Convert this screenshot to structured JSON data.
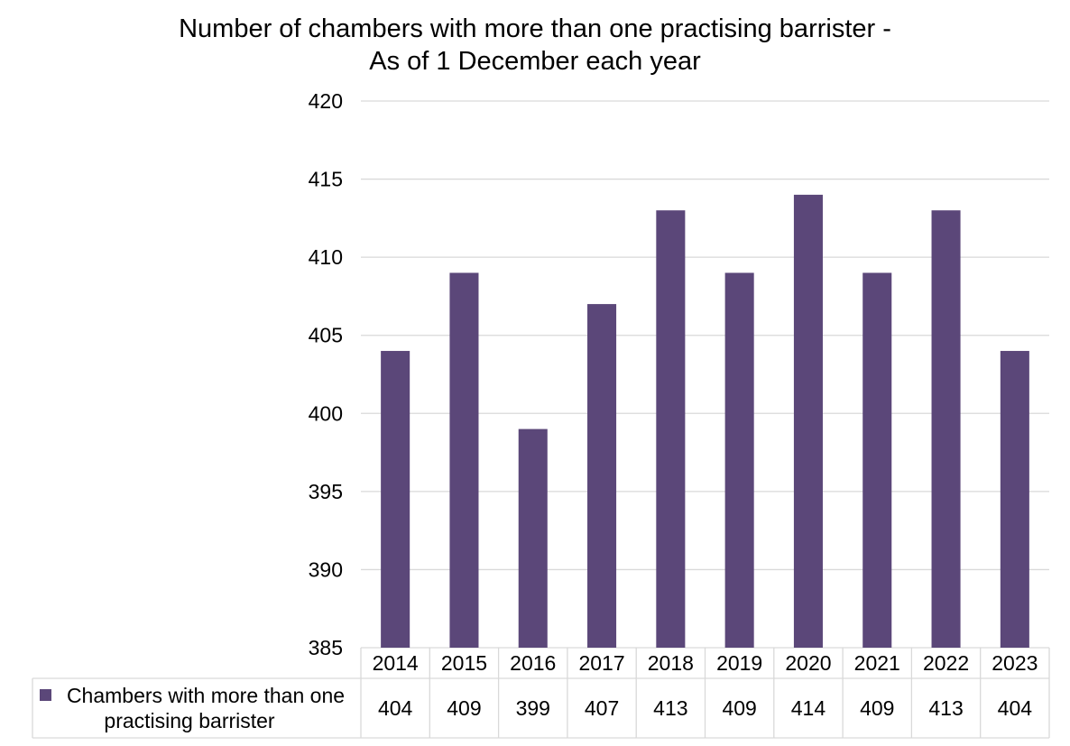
{
  "chart_data": {
    "type": "bar",
    "title_lines": [
      "Number of chambers with more than one practising barrister -",
      "As of 1 December each year"
    ],
    "categories": [
      "2014",
      "2015",
      "2016",
      "2017",
      "2018",
      "2019",
      "2020",
      "2021",
      "2022",
      "2023"
    ],
    "series": [
      {
        "name": "Chambers with more than one practising barrister",
        "name_lines": [
          "Chambers with more than one",
          "practising barrister"
        ],
        "values": [
          404,
          409,
          399,
          407,
          413,
          409,
          414,
          409,
          413,
          404
        ],
        "color": "#5b4779"
      }
    ],
    "ylim": [
      385,
      420
    ],
    "yticks": [
      385,
      390,
      395,
      400,
      405,
      410,
      415,
      420
    ],
    "grid": true,
    "legend": "data-table-left",
    "data_table": true,
    "colors": {
      "gridline": "#d9d9d9",
      "table_border": "#d9d9d9"
    }
  }
}
